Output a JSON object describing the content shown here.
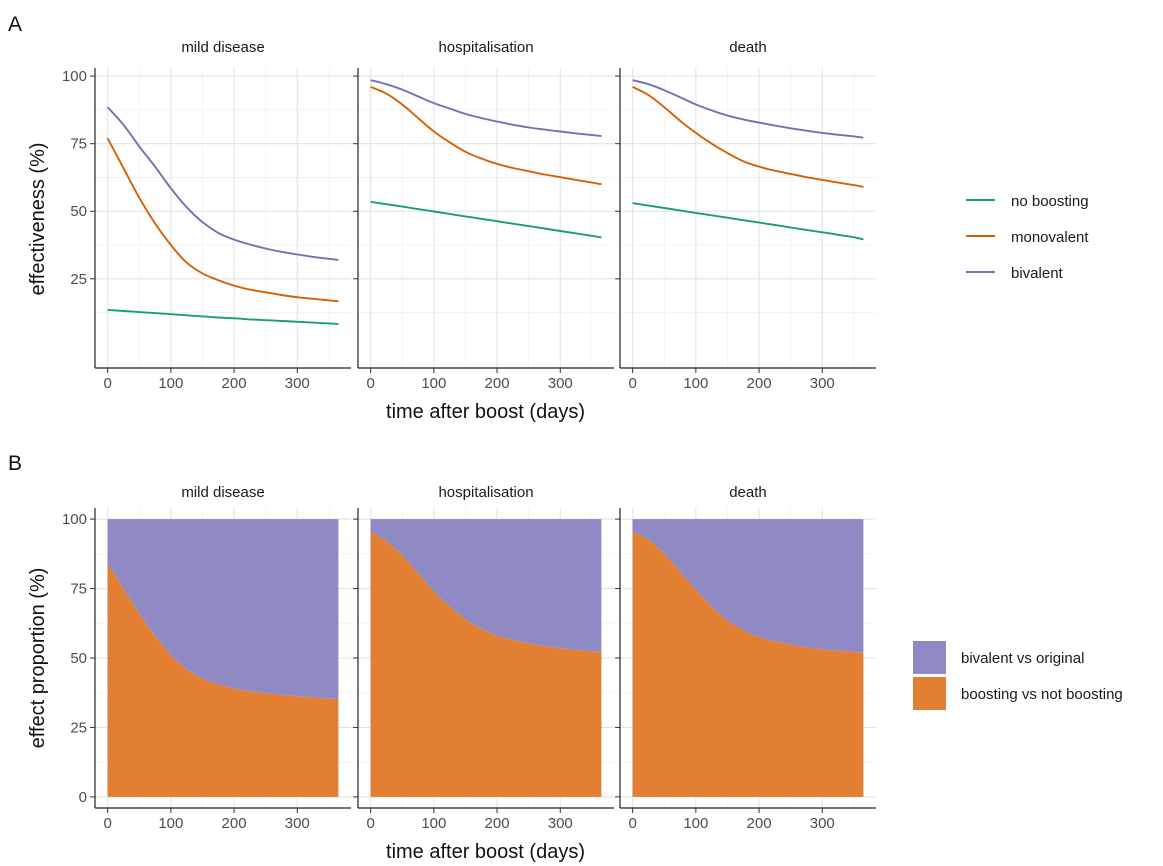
{
  "chart_data": [
    {
      "panel_label": "A",
      "type": "line",
      "xlabel": "time after boost (days)",
      "ylabel": "effectiveness (%)",
      "xlim": [
        0,
        365
      ],
      "ylim": [
        0,
        100
      ],
      "x_ticks": [
        0,
        100,
        200,
        300
      ],
      "y_ticks": [
        25,
        50,
        75,
        100
      ],
      "grid": true,
      "legend_placement": "right",
      "x": [
        0,
        25,
        50,
        75,
        100,
        125,
        150,
        175,
        200,
        225,
        250,
        275,
        300,
        325,
        350,
        365
      ],
      "facets": [
        {
          "title": "mild disease",
          "series": [
            {
              "name": "no boosting",
              "color": "#1b9e77",
              "values": [
                13.5,
                13.1,
                12.7,
                12.3,
                11.9,
                11.5,
                11.1,
                10.7,
                10.4,
                10.0,
                9.7,
                9.4,
                9.1,
                8.8,
                8.5,
                8.3
              ]
            },
            {
              "name": "monovalent",
              "color": "#d95f02",
              "values": [
                77,
                66,
                55,
                45.5,
                37.5,
                31,
                27,
                24.5,
                22.5,
                21,
                20,
                19,
                18.2,
                17.6,
                17,
                16.7
              ]
            },
            {
              "name": "bivalent",
              "color": "#7570b3",
              "values": [
                88.5,
                82,
                74,
                66.5,
                58.5,
                51.5,
                46,
                42,
                39.5,
                37.7,
                36.2,
                35,
                34,
                33.1,
                32.4,
                32
              ]
            }
          ]
        },
        {
          "title": "hospitalisation",
          "series": [
            {
              "name": "no boosting",
              "color": "#1b9e77",
              "values": [
                53.5,
                52.6,
                51.7,
                50.8,
                49.9,
                49.0,
                48.1,
                47.2,
                46.3,
                45.4,
                44.5,
                43.6,
                42.7,
                41.8,
                40.9,
                40.3
              ]
            },
            {
              "name": "monovalent",
              "color": "#d95f02",
              "values": [
                96,
                93.5,
                89.5,
                84.5,
                79.5,
                75.5,
                72,
                69.5,
                67.5,
                66,
                64.8,
                63.6,
                62.6,
                61.6,
                60.6,
                60
              ]
            },
            {
              "name": "bivalent",
              "color": "#7570b3",
              "values": [
                98.5,
                97,
                95,
                92.5,
                90,
                88,
                86,
                84.5,
                83.2,
                82,
                81,
                80.2,
                79.5,
                78.8,
                78.2,
                77.8
              ]
            }
          ]
        },
        {
          "title": "death",
          "series": [
            {
              "name": "no boosting",
              "color": "#1b9e77",
              "values": [
                53,
                52.1,
                51.2,
                50.3,
                49.4,
                48.5,
                47.6,
                46.7,
                45.8,
                44.9,
                44.0,
                43.1,
                42.2,
                41.3,
                40.4,
                39.6
              ]
            },
            {
              "name": "monovalent",
              "color": "#d95f02",
              "values": [
                96,
                93,
                88.5,
                83.5,
                79,
                75,
                71.5,
                68.5,
                66.5,
                65,
                63.8,
                62.6,
                61.6,
                60.6,
                59.7,
                59
              ]
            },
            {
              "name": "bivalent",
              "color": "#7570b3",
              "values": [
                98.5,
                97,
                94.8,
                92.2,
                89.5,
                87.3,
                85.4,
                84,
                82.8,
                81.7,
                80.7,
                79.8,
                79,
                78.3,
                77.7,
                77.2
              ]
            }
          ]
        }
      ]
    },
    {
      "panel_label": "B",
      "type": "area",
      "stacked": true,
      "xlabel": "time after boost (days)",
      "ylabel": "effect proportion (%)",
      "xlim": [
        0,
        365
      ],
      "ylim": [
        0,
        100
      ],
      "x_ticks": [
        0,
        100,
        200,
        300
      ],
      "y_ticks": [
        0,
        25,
        50,
        75,
        100
      ],
      "grid": true,
      "legend_placement": "right",
      "x": [
        0,
        25,
        50,
        75,
        100,
        125,
        150,
        175,
        200,
        225,
        250,
        275,
        300,
        325,
        350,
        365
      ],
      "facets": [
        {
          "title": "mild disease",
          "series": [
            {
              "name": "boosting vs not boosting",
              "color": "#e27f33",
              "values": [
                84,
                75,
                66,
                58,
                51,
                46,
                42.5,
                40.5,
                39,
                38,
                37.3,
                36.7,
                36.2,
                35.8,
                35.4,
                35.2
              ]
            },
            {
              "name": "bivalent vs original",
              "color": "#8f8ac4",
              "values": [
                16,
                25,
                34,
                42,
                49,
                54,
                57.5,
                59.5,
                61,
                62,
                62.7,
                63.3,
                63.8,
                64.2,
                64.6,
                64.8
              ]
            }
          ]
        },
        {
          "title": "hospitalisation",
          "series": [
            {
              "name": "boosting vs not boosting",
              "color": "#e27f33",
              "values": [
                95.5,
                92,
                87,
                80.5,
                74,
                68.5,
                64,
                60.5,
                58,
                56.5,
                55.2,
                54.2,
                53.5,
                53,
                52.5,
                52.2
              ]
            },
            {
              "name": "bivalent vs original",
              "color": "#8f8ac4",
              "values": [
                4.5,
                8,
                13,
                19.5,
                26,
                31.5,
                36,
                39.5,
                42,
                43.5,
                44.8,
                45.8,
                46.5,
                47,
                47.5,
                47.8
              ]
            }
          ]
        },
        {
          "title": "death",
          "series": [
            {
              "name": "boosting vs not boosting",
              "color": "#e27f33",
              "values": [
                95.5,
                92.5,
                87.5,
                81,
                74.5,
                68.5,
                63.5,
                60,
                57.5,
                56,
                54.8,
                53.8,
                53.1,
                52.6,
                52.2,
                52
              ]
            },
            {
              "name": "bivalent vs original",
              "color": "#8f8ac4",
              "values": [
                4.5,
                7.5,
                12.5,
                19,
                25.5,
                31.5,
                36.5,
                40,
                42.5,
                44,
                45.2,
                46.2,
                46.9,
                47.4,
                47.8,
                48
              ]
            }
          ]
        }
      ]
    }
  ]
}
